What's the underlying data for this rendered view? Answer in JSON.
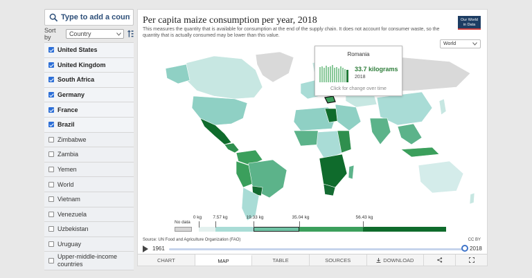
{
  "sidebar": {
    "search_placeholder": "Type to add a country...",
    "sort_label": "Sort by",
    "sort_value": "Country",
    "items": [
      {
        "label": "United States",
        "checked": true
      },
      {
        "label": "United Kingdom",
        "checked": true
      },
      {
        "label": "South Africa",
        "checked": true
      },
      {
        "label": "Germany",
        "checked": true
      },
      {
        "label": "France",
        "checked": true
      },
      {
        "label": "Brazil",
        "checked": true
      },
      {
        "label": "Zimbabwe",
        "checked": false
      },
      {
        "label": "Zambia",
        "checked": false
      },
      {
        "label": "Yemen",
        "checked": false
      },
      {
        "label": "World",
        "checked": false
      },
      {
        "label": "Vietnam",
        "checked": false
      },
      {
        "label": "Venezuela",
        "checked": false
      },
      {
        "label": "Uzbekistan",
        "checked": false
      },
      {
        "label": "Uruguay",
        "checked": false
      },
      {
        "label": "Upper-middle-income countries",
        "checked": false
      }
    ]
  },
  "chart": {
    "title": "Per capita maize consumption per year, 2018",
    "subtitle": "This measures the quantity that is available for consumption at the end of the supply chain. It does not account for consumer waste, so the quantity that is actually consumed may be lower than this value.",
    "logo_line1": "Our World",
    "logo_line2": "in Data",
    "region_select": "World",
    "source": "Source: UN Food and Agriculture Organization (FAO)",
    "license": "CC BY"
  },
  "tooltip": {
    "country": "Romania",
    "value": "33.7 kilograms",
    "year": "2018",
    "hint": "Click for change over time"
  },
  "legend": {
    "no_data": "No data",
    "ticks": [
      "0 kg",
      "7.57 kg",
      "19.33 kg",
      "35.04 kg",
      "56.43 kg"
    ],
    "colors": [
      "#e4f1ef",
      "#a9dcd6",
      "#6ec3a4",
      "#3b9f5c",
      "#0f6b2c"
    ]
  },
  "timeline": {
    "start_year": "1961",
    "end_year": "2018",
    "position": 1.0
  },
  "tabs": {
    "chart": "CHART",
    "map": "MAP",
    "table": "TABLE",
    "sources": "SOURCES",
    "download": "DOWNLOAD"
  },
  "colors": {
    "accent": "#3f74c9",
    "checkbox": "#2d6fd7",
    "low": "#c4e6e2",
    "mid": "#5cb38a",
    "high": "#146b32"
  }
}
